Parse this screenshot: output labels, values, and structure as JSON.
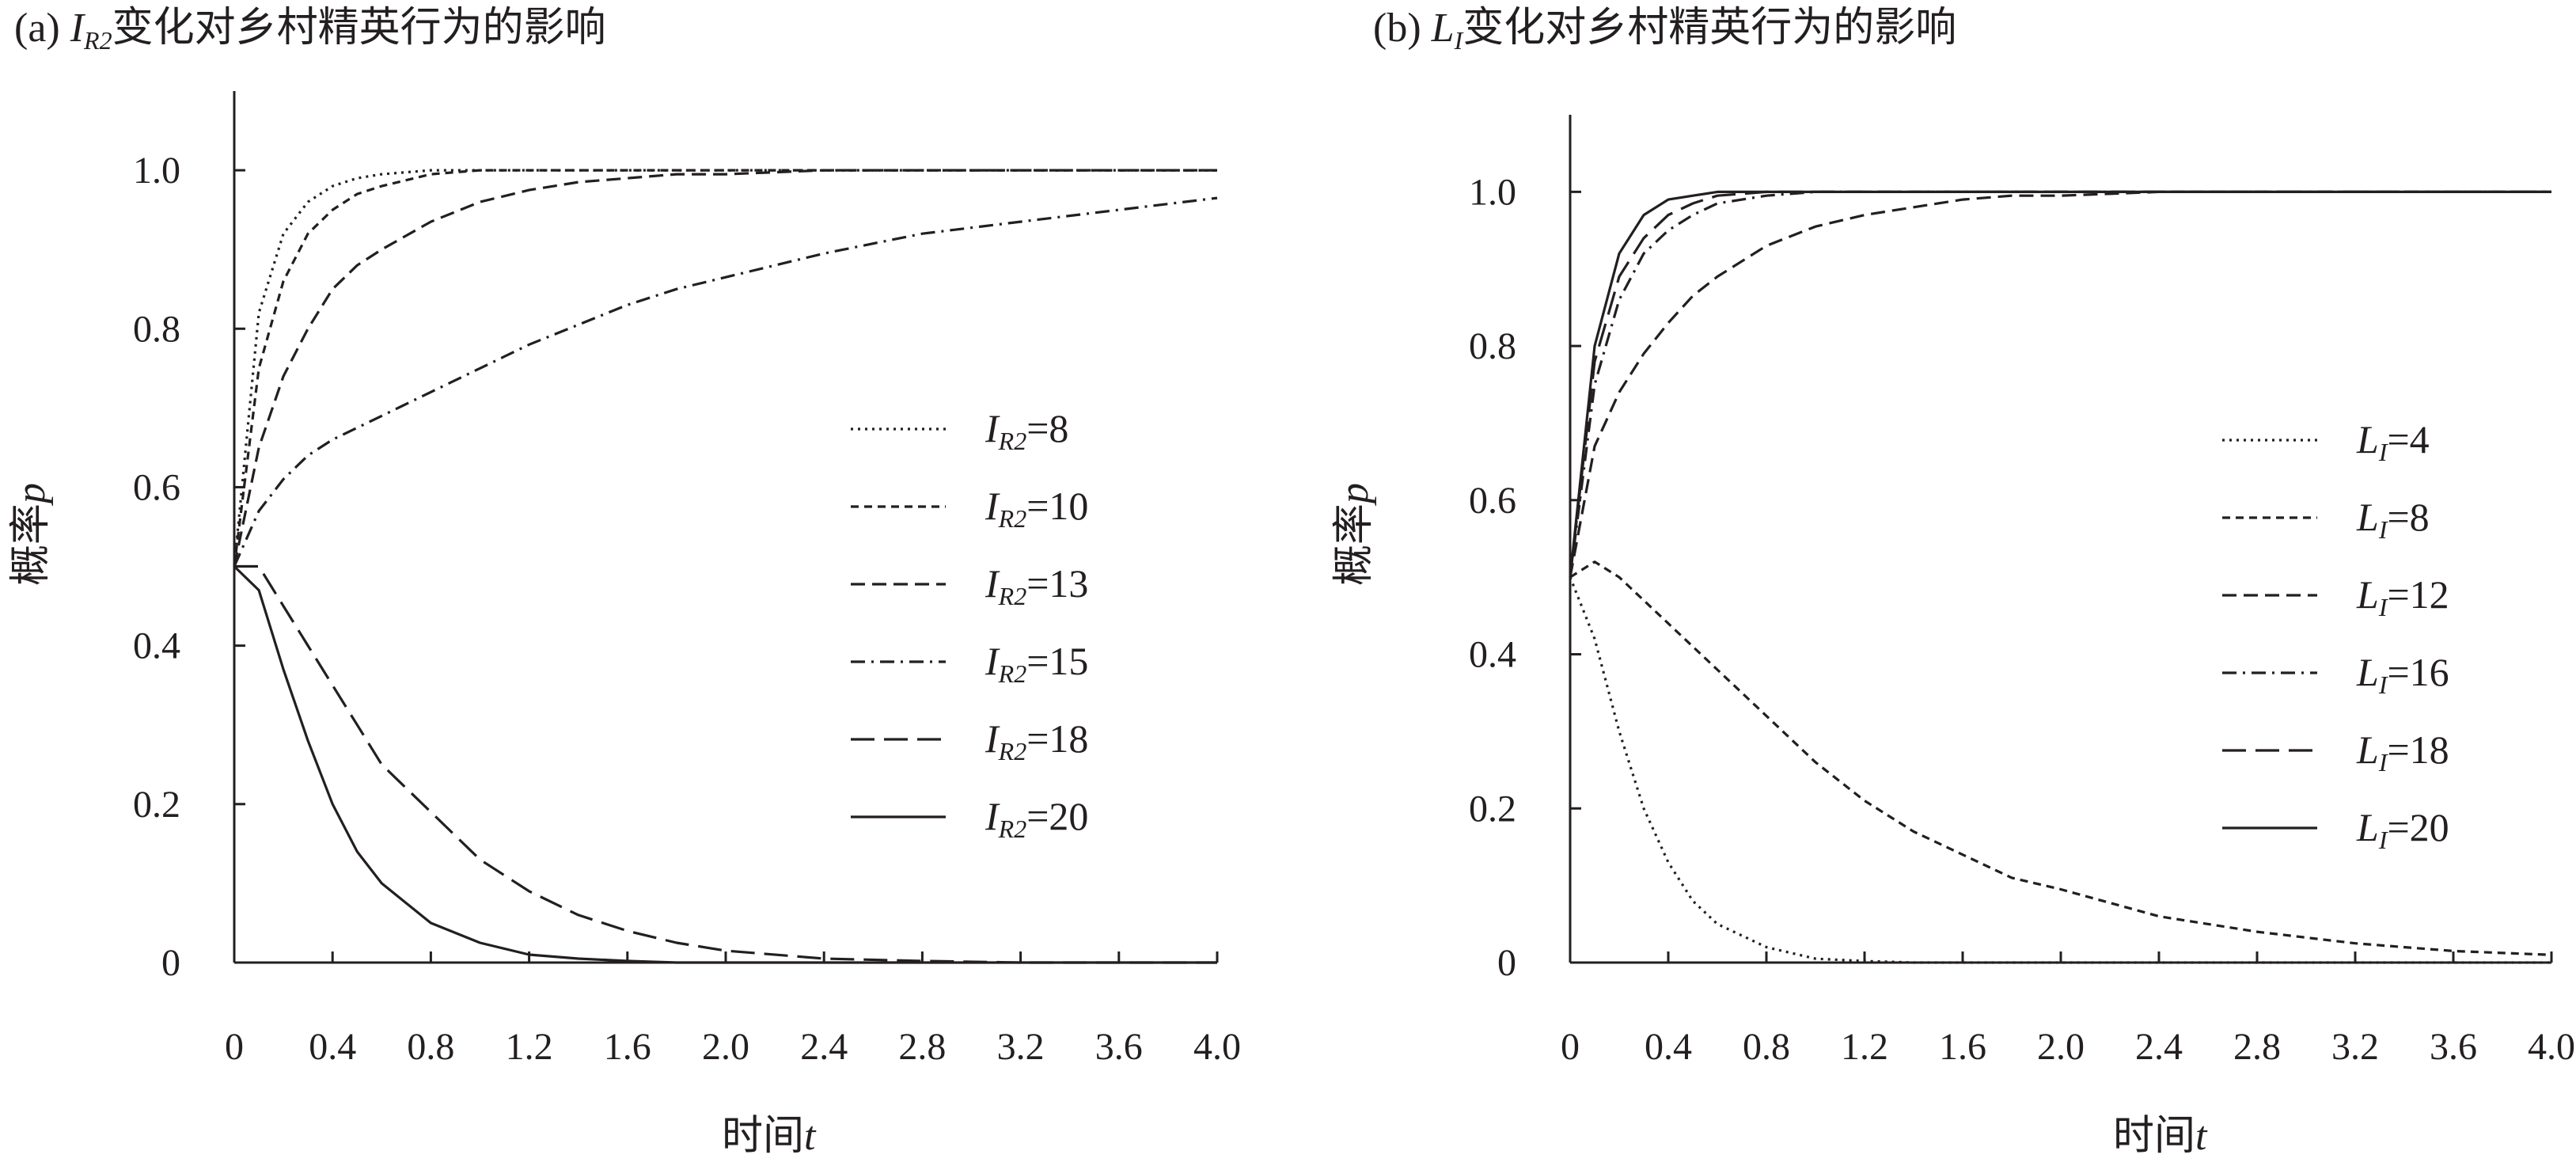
{
  "chart_data": [
    {
      "type": "line",
      "panel_label": "(a)",
      "title_var_main": "I",
      "title_var_sub": "R2",
      "title_rest": "变化对乡村精英行为的影响",
      "ylabel_text": "概率",
      "ylabel_var": "p",
      "xlabel_text": "时间",
      "xlabel_var": "t",
      "xlim": [
        0,
        4.0
      ],
      "ylim": [
        0,
        1.1
      ],
      "x_ticks": [
        "0",
        "0.4",
        "0.8",
        "1.2",
        "1.6",
        "2.0",
        "2.4",
        "2.8",
        "3.2",
        "3.6",
        "4.0"
      ],
      "y_ticks": [
        "0",
        "0.2",
        "0.4",
        "0.6",
        "0.8",
        "1.0"
      ],
      "grid": false,
      "legend_position": "right",
      "x": [
        0,
        0.1,
        0.2,
        0.3,
        0.4,
        0.5,
        0.6,
        0.8,
        1.0,
        1.2,
        1.4,
        1.6,
        1.8,
        2.0,
        2.4,
        2.8,
        3.2,
        3.6,
        4.0
      ],
      "series": [
        {
          "name_main": "I",
          "name_sub": "R2",
          "name_val": "=8",
          "dash": "dotted",
          "values": [
            0.5,
            0.82,
            0.92,
            0.96,
            0.98,
            0.99,
            0.995,
            1.0,
            1.0,
            1.0,
            1.0,
            1.0,
            1.0,
            1.0,
            1.0,
            1.0,
            1.0,
            1.0,
            1.0
          ]
        },
        {
          "name_main": "I",
          "name_sub": "R2",
          "name_val": "=10",
          "dash": "short-dash",
          "values": [
            0.5,
            0.75,
            0.86,
            0.92,
            0.95,
            0.97,
            0.98,
            0.995,
            1.0,
            1.0,
            1.0,
            1.0,
            1.0,
            1.0,
            1.0,
            1.0,
            1.0,
            1.0,
            1.0
          ]
        },
        {
          "name_main": "I",
          "name_sub": "R2",
          "name_val": "=13",
          "dash": "medium-dash",
          "values": [
            0.5,
            0.65,
            0.74,
            0.8,
            0.85,
            0.88,
            0.9,
            0.935,
            0.96,
            0.975,
            0.985,
            0.99,
            0.995,
            0.995,
            1.0,
            1.0,
            1.0,
            1.0,
            1.0
          ]
        },
        {
          "name_main": "I",
          "name_sub": "R2",
          "name_val": "=15",
          "dash": "dash-dot",
          "values": [
            0.5,
            0.57,
            0.61,
            0.64,
            0.66,
            0.675,
            0.69,
            0.72,
            0.75,
            0.78,
            0.805,
            0.83,
            0.85,
            0.865,
            0.895,
            0.92,
            0.935,
            0.95,
            0.965
          ]
        },
        {
          "name_main": "I",
          "name_sub": "R2",
          "name_val": "=18",
          "dash": "long-dash",
          "values": [
            0.5,
            0.5,
            0.45,
            0.4,
            0.35,
            0.3,
            0.25,
            0.19,
            0.13,
            0.09,
            0.06,
            0.04,
            0.025,
            0.015,
            0.005,
            0.002,
            0.0,
            0.0,
            0.0
          ]
        },
        {
          "name_main": "I",
          "name_sub": "R2",
          "name_val": "=20",
          "dash": "solid",
          "values": [
            0.5,
            0.47,
            0.37,
            0.28,
            0.2,
            0.14,
            0.1,
            0.05,
            0.025,
            0.01,
            0.005,
            0.002,
            0.0,
            0.0,
            0.0,
            0.0,
            0.0,
            0.0,
            0.0
          ]
        }
      ]
    },
    {
      "type": "line",
      "panel_label": "(b)",
      "title_var_main": "L",
      "title_var_sub": "I",
      "title_rest": "变化对乡村精英行为的影响",
      "ylabel_text": "概率",
      "ylabel_var": "p",
      "xlabel_text": "时间",
      "xlabel_var": "t",
      "xlim": [
        0,
        4.0
      ],
      "ylim": [
        0,
        1.1
      ],
      "x_ticks": [
        "0",
        "0.4",
        "0.8",
        "1.2",
        "1.6",
        "2.0",
        "2.4",
        "2.8",
        "3.2",
        "3.6",
        "4.0"
      ],
      "y_ticks": [
        "0",
        "0.2",
        "0.4",
        "0.6",
        "0.8",
        "1.0"
      ],
      "grid": false,
      "legend_position": "right",
      "x": [
        0,
        0.1,
        0.2,
        0.3,
        0.4,
        0.5,
        0.6,
        0.8,
        1.0,
        1.2,
        1.4,
        1.6,
        1.8,
        2.0,
        2.4,
        2.8,
        3.2,
        3.6,
        4.0
      ],
      "series": [
        {
          "name_main": "L",
          "name_sub": "I",
          "name_val": "=4",
          "dash": "dotted",
          "values": [
            0.5,
            0.42,
            0.3,
            0.2,
            0.13,
            0.08,
            0.05,
            0.02,
            0.005,
            0.002,
            0.0,
            0.0,
            0.0,
            0.0,
            0.0,
            0.0,
            0.0,
            0.0,
            0.0
          ]
        },
        {
          "name_main": "L",
          "name_sub": "I",
          "name_val": "=8",
          "dash": "short-dash",
          "values": [
            0.5,
            0.52,
            0.5,
            0.47,
            0.44,
            0.41,
            0.38,
            0.32,
            0.26,
            0.21,
            0.17,
            0.14,
            0.11,
            0.095,
            0.06,
            0.04,
            0.025,
            0.015,
            0.01
          ]
        },
        {
          "name_main": "L",
          "name_sub": "I",
          "name_val": "=12",
          "dash": "medium-dash",
          "values": [
            0.5,
            0.67,
            0.74,
            0.79,
            0.83,
            0.865,
            0.89,
            0.93,
            0.955,
            0.97,
            0.98,
            0.99,
            0.995,
            0.995,
            1.0,
            1.0,
            1.0,
            1.0,
            1.0
          ]
        },
        {
          "name_main": "L",
          "name_sub": "I",
          "name_val": "=16",
          "dash": "dash-dot",
          "values": [
            0.5,
            0.75,
            0.86,
            0.92,
            0.95,
            0.97,
            0.985,
            0.995,
            1.0,
            1.0,
            1.0,
            1.0,
            1.0,
            1.0,
            1.0,
            1.0,
            1.0,
            1.0,
            1.0
          ]
        },
        {
          "name_main": "L",
          "name_sub": "I",
          "name_val": "=18",
          "dash": "long-dash",
          "values": [
            0.5,
            0.78,
            0.89,
            0.94,
            0.97,
            0.985,
            0.995,
            1.0,
            1.0,
            1.0,
            1.0,
            1.0,
            1.0,
            1.0,
            1.0,
            1.0,
            1.0,
            1.0,
            1.0
          ]
        },
        {
          "name_main": "L",
          "name_sub": "I",
          "name_val": "=20",
          "dash": "solid",
          "values": [
            0.5,
            0.8,
            0.92,
            0.97,
            0.99,
            0.995,
            1.0,
            1.0,
            1.0,
            1.0,
            1.0,
            1.0,
            1.0,
            1.0,
            1.0,
            1.0,
            1.0,
            1.0,
            1.0
          ]
        }
      ]
    }
  ]
}
